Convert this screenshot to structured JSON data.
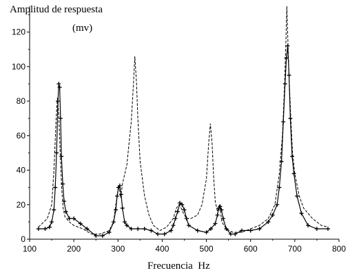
{
  "chart_data": {
    "type": "line",
    "title": "",
    "ylabel": [
      "Amplitud de respuesta",
      "(mv)"
    ],
    "xlabel": "Frecuencia  Hz",
    "xlim": [
      100,
      800
    ],
    "ylim": [
      0,
      135
    ],
    "xticks": [
      100,
      200,
      300,
      400,
      500,
      600,
      700,
      800
    ],
    "yticks": [
      0,
      20,
      40,
      60,
      80,
      100,
      120
    ],
    "grid": false,
    "series": [
      {
        "style": "dashed",
        "marker": "none",
        "color": "#000000",
        "x": [
          120,
          140,
          150,
          155,
          160,
          163,
          166,
          170,
          173,
          176,
          180,
          190,
          200,
          220,
          240,
          260,
          280,
          290,
          295,
          300,
          303,
          306,
          310,
          320,
          330,
          335,
          338,
          342,
          345,
          350,
          360,
          370,
          380,
          395,
          410,
          425,
          432,
          438,
          443,
          448,
          455,
          465,
          480,
          490,
          500,
          505,
          509,
          513,
          516,
          520,
          525,
          530,
          535,
          545,
          560,
          580,
          600,
          620,
          640,
          655,
          665,
          672,
          677,
          680,
          682,
          684,
          687,
          691,
          695,
          700,
          710,
          720,
          740,
          760,
          775
        ],
        "y": [
          7,
          12,
          20,
          40,
          70,
          82,
          72,
          45,
          28,
          18,
          13,
          10,
          8,
          6,
          3,
          3,
          5,
          10,
          20,
          28,
          30,
          24,
          32,
          43,
          68,
          90,
          106,
          90,
          70,
          45,
          25,
          14,
          8,
          5,
          7,
          12,
          18,
          20,
          18,
          15,
          12,
          12,
          14,
          20,
          35,
          55,
          67,
          55,
          38,
          22,
          16,
          20,
          10,
          6,
          4,
          4,
          6,
          8,
          12,
          20,
          38,
          60,
          90,
          115,
          135,
          118,
          95,
          70,
          50,
          38,
          25,
          18,
          12,
          8,
          7
        ]
      },
      {
        "style": "solid",
        "marker": "plus",
        "color": "#000000",
        "x": [
          120,
          135,
          145,
          150,
          155,
          158,
          161,
          164,
          166,
          168,
          170,
          172,
          175,
          178,
          182,
          190,
          200,
          215,
          230,
          250,
          265,
          280,
          290,
          295,
          298,
          301,
          304,
          307,
          310,
          315,
          320,
          330,
          345,
          360,
          375,
          390,
          405,
          420,
          425,
          430,
          435,
          440,
          445,
          450,
          455,
          460,
          480,
          500,
          510,
          520,
          525,
          528,
          531,
          534,
          538,
          545,
          555,
          565,
          580,
          600,
          620,
          640,
          650,
          660,
          665,
          670,
          674,
          678,
          681,
          684,
          687,
          690,
          694,
          698,
          705,
          715,
          730,
          750,
          775
        ],
        "y": [
          6,
          6,
          7,
          10,
          17,
          30,
          50,
          80,
          90,
          88,
          70,
          48,
          32,
          22,
          16,
          12,
          12,
          9,
          6,
          2,
          2,
          4,
          10,
          17,
          25,
          30,
          31,
          26,
          18,
          10,
          8,
          6,
          6,
          6,
          5,
          3,
          3,
          5,
          8,
          12,
          16,
          21,
          20,
          17,
          12,
          8,
          5,
          4,
          6,
          9,
          14,
          18,
          19,
          17,
          12,
          6,
          3,
          3,
          5,
          5,
          6,
          10,
          14,
          20,
          30,
          45,
          68,
          90,
          105,
          112,
          95,
          70,
          48,
          38,
          25,
          15,
          8,
          6,
          6
        ]
      }
    ]
  }
}
